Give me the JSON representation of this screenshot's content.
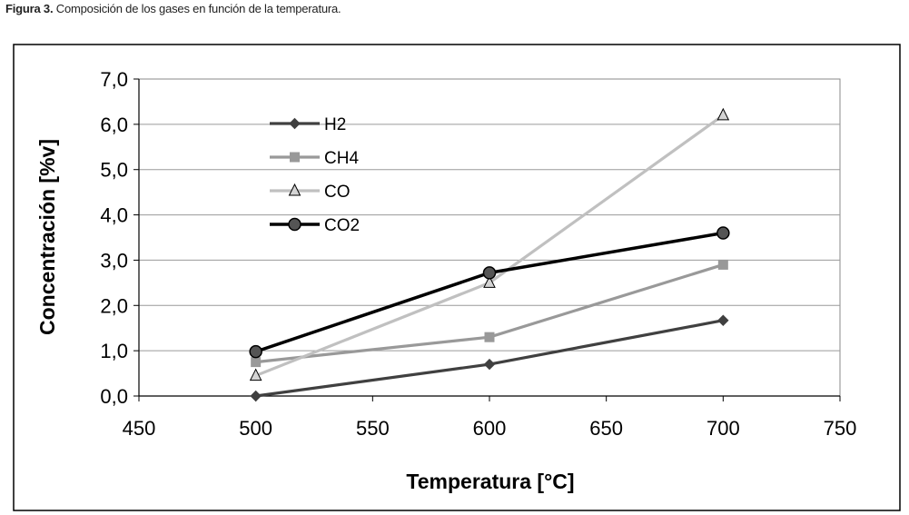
{
  "caption": {
    "label": "Figura 3.",
    "text": " Composición de los gases en función de la temperatura."
  },
  "chart_data": {
    "type": "line",
    "xlabel": "Temperatura [°C]",
    "ylabel": "Concentración [%v]",
    "xlim": [
      450,
      750
    ],
    "ylim": [
      0,
      7
    ],
    "x_ticks": [
      "450",
      "500",
      "550",
      "600",
      "650",
      "700",
      "750"
    ],
    "x_tick_values": [
      450,
      500,
      550,
      600,
      650,
      700,
      750
    ],
    "y_ticks": [
      "0,0",
      "1,0",
      "2,0",
      "3,0",
      "4,0",
      "5,0",
      "6,0",
      "7,0"
    ],
    "y_tick_values": [
      0,
      1,
      2,
      3,
      4,
      5,
      6,
      7
    ],
    "grid": "horizontal",
    "legend_position": "top-left",
    "x": [
      500,
      600,
      700
    ],
    "series": [
      {
        "name": "H2",
        "values": [
          0.0,
          0.7,
          1.67
        ],
        "color": "#404040",
        "marker": "diamond"
      },
      {
        "name": "CH4",
        "values": [
          0.75,
          1.3,
          2.9
        ],
        "color": "#999999",
        "marker": "square"
      },
      {
        "name": "CO",
        "values": [
          0.45,
          2.5,
          6.2
        ],
        "color": "#c0c0c0",
        "marker": "triangle"
      },
      {
        "name": "CO2",
        "values": [
          0.98,
          2.72,
          3.6
        ],
        "color": "#000000",
        "marker": "circle"
      }
    ]
  }
}
